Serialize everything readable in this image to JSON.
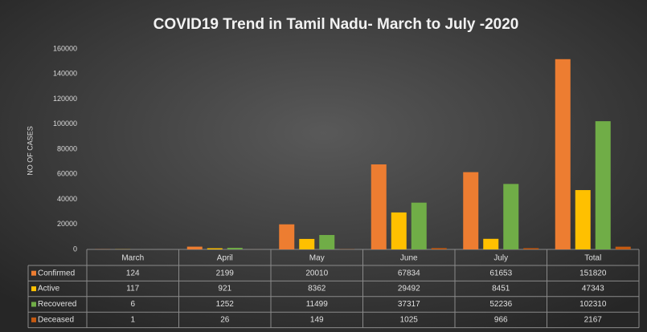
{
  "chart_data": {
    "type": "bar",
    "title": "COVID19 Trend in Tamil Nadu- March to July -2020",
    "y_label": "NO OF CASES",
    "categories": [
      "March",
      "April",
      "May",
      "June",
      "July",
      "Total"
    ],
    "series": [
      {
        "name": "Confirmed",
        "color": "#ed7d31",
        "values": [
          124,
          2199,
          20010,
          67834,
          61653,
          151820
        ]
      },
      {
        "name": "Active",
        "color": "#ffc000",
        "values": [
          117,
          921,
          8362,
          29492,
          8451,
          47343
        ]
      },
      {
        "name": "Recovered",
        "color": "#70ad47",
        "values": [
          6,
          1252,
          11499,
          37317,
          52236,
          102310
        ]
      },
      {
        "name": "Deceased",
        "color": "#c55a11",
        "values": [
          1,
          26,
          149,
          1025,
          966,
          2167
        ]
      }
    ],
    "ylim": [
      0,
      160000
    ],
    "yticks": [
      0,
      20000,
      40000,
      60000,
      80000,
      100000,
      120000,
      140000,
      160000
    ],
    "grid": false
  }
}
